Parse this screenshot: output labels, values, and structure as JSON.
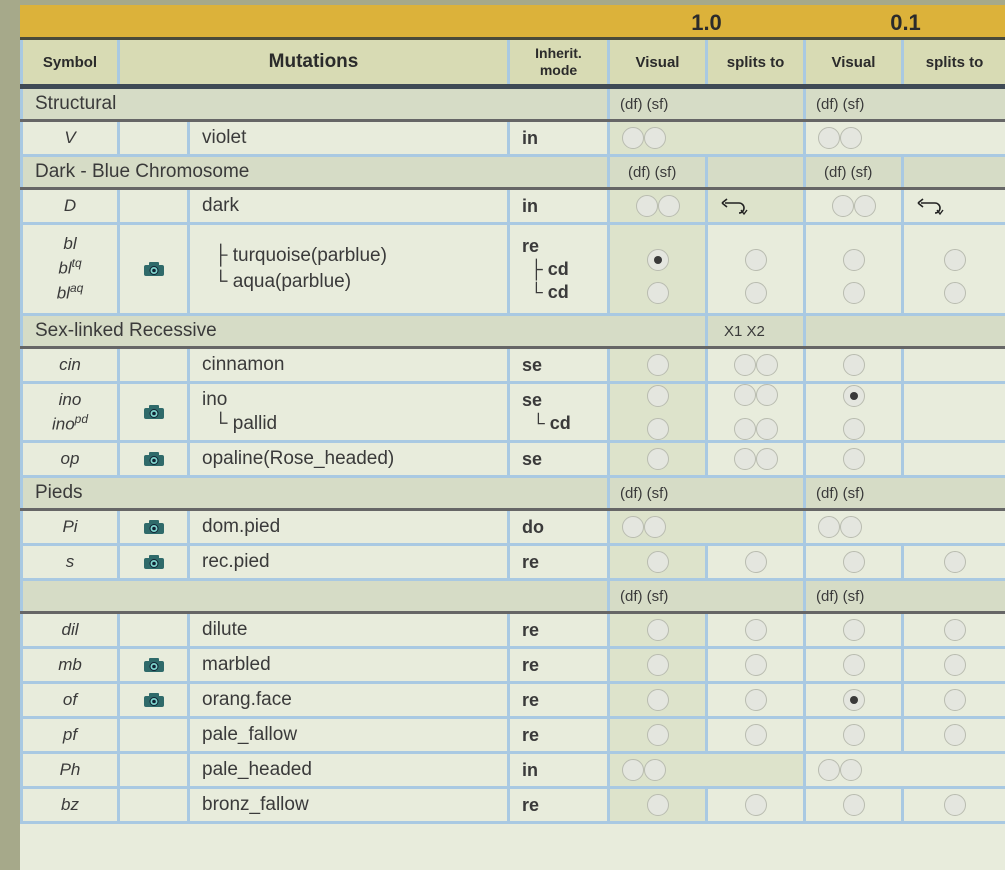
{
  "header": {
    "year1": "1.0",
    "year2": "0.1",
    "symbol": "Symbol",
    "mutations": "Mutations",
    "inherit_line1": "Inherit.",
    "inherit_line2": "mode",
    "visual": "Visual",
    "splits": "splits to"
  },
  "marks": {
    "dfsf": "(df) (sf)",
    "x1x2": "X1 X2",
    "branch": "├",
    "last": "└"
  },
  "sections": {
    "structural": "Structural",
    "dark_blue": "Dark - Blue Chromosome",
    "sex_linked": "Sex-linked Recessive",
    "pieds": "Pieds",
    "other": ""
  },
  "rows": {
    "violet": {
      "symbol": "V",
      "name": "violet",
      "inherit": "in"
    },
    "dark": {
      "symbol": "D",
      "name": "dark",
      "inherit": "in"
    },
    "bl": {
      "symbol": "bl",
      "symbol_tq_base": "bl",
      "symbol_tq_sup": "tq",
      "symbol_aq_base": "bl",
      "symbol_aq_sup": "aq",
      "name1": "turquoise(parblue)",
      "name2": "aqua(parblue)",
      "inherit": "re",
      "inherit2": "cd",
      "inherit3": "cd",
      "v1_checked": [
        true,
        false
      ],
      "v2_checked": [
        false,
        false
      ]
    },
    "cin": {
      "symbol": "cin",
      "name": "cinnamon",
      "inherit": "se"
    },
    "ino": {
      "symbol": "ino",
      "symbol_pd_base": "ino",
      "symbol_pd_sup": "pd",
      "name1": "ino",
      "name2": "pallid",
      "inherit": "se",
      "inherit2": "cd",
      "v2_checked": [
        true,
        false
      ]
    },
    "op": {
      "symbol": "op",
      "name": "opaline(Rose_headed)",
      "inherit": "se"
    },
    "pi": {
      "symbol": "Pi",
      "name": "dom.pied",
      "inherit": "do"
    },
    "s": {
      "symbol": "s",
      "name": "rec.pied",
      "inherit": "re"
    },
    "dil": {
      "symbol": "dil",
      "name": "dilute",
      "inherit": "re"
    },
    "mb": {
      "symbol": "mb",
      "name": "marbled",
      "inherit": "re"
    },
    "of": {
      "symbol": "of",
      "name": "orang.face",
      "inherit": "re",
      "v2_checked": true
    },
    "pf": {
      "symbol": "pf",
      "name": "pale_fallow",
      "inherit": "re"
    },
    "ph": {
      "symbol": "Ph",
      "name": "pale_headed",
      "inherit": "in"
    },
    "bz": {
      "symbol": "bz",
      "name": "bronz_fallow",
      "inherit": "re"
    }
  },
  "colors": {
    "year_bar": "#dcb23a",
    "header_bg": "#d8dbb4",
    "section_bg": "#d6dcc6",
    "cell_bg": "#e8ecdc",
    "visual_col_bg": "#dde3cb",
    "grid": "#a9c9e2"
  },
  "icons": {
    "camera": "camera-icon",
    "link": "link-icon"
  }
}
